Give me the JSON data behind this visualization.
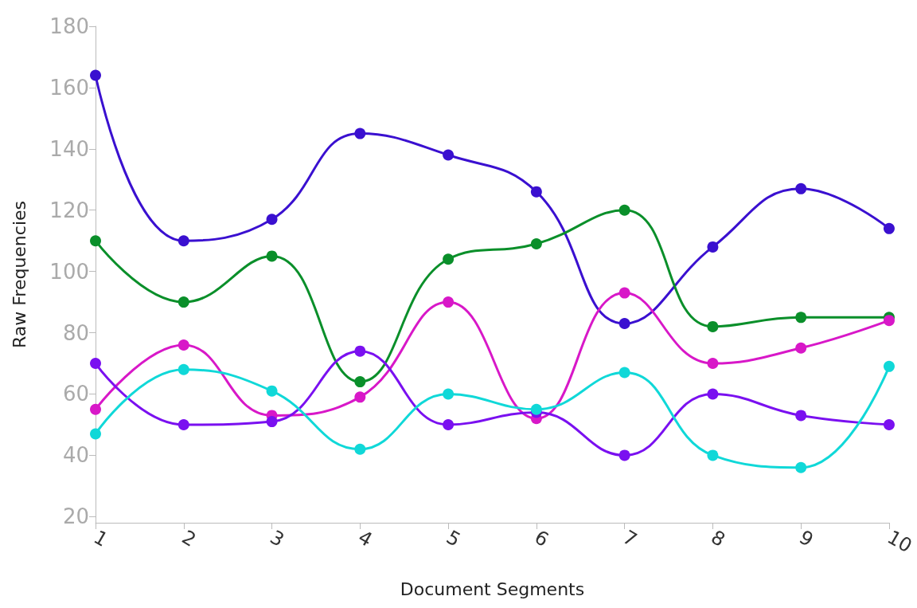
{
  "chart_data": {
    "type": "line",
    "xlabel": "Document Segments",
    "ylabel": "Raw Frequencies",
    "categories": [
      "1",
      "2",
      "3",
      "4",
      "5",
      "6",
      "7",
      "8",
      "9",
      "10"
    ],
    "series": [
      {
        "color": "#3a10d0",
        "values": [
          164,
          110,
          117,
          145,
          138,
          126,
          83,
          108,
          127,
          114
        ]
      },
      {
        "color": "#0a8f2a",
        "values": [
          110,
          90,
          105,
          64,
          104,
          109,
          120,
          82,
          85,
          85
        ]
      },
      {
        "color": "#d818c8",
        "values": [
          55,
          76,
          53,
          59,
          90,
          52,
          93,
          70,
          75,
          84
        ]
      },
      {
        "color": "#7a10f0",
        "values": [
          70,
          50,
          51,
          74,
          50,
          54,
          40,
          60,
          53,
          50
        ]
      },
      {
        "color": "#10d8d8",
        "values": [
          47,
          68,
          61,
          42,
          60,
          55,
          67,
          40,
          36,
          69
        ]
      }
    ],
    "ylim": [
      18,
      180
    ],
    "yticks": [
      20,
      40,
      60,
      80,
      100,
      120,
      140,
      160,
      180
    ],
    "grid": false,
    "marker": "circle",
    "line_style": "solid"
  }
}
